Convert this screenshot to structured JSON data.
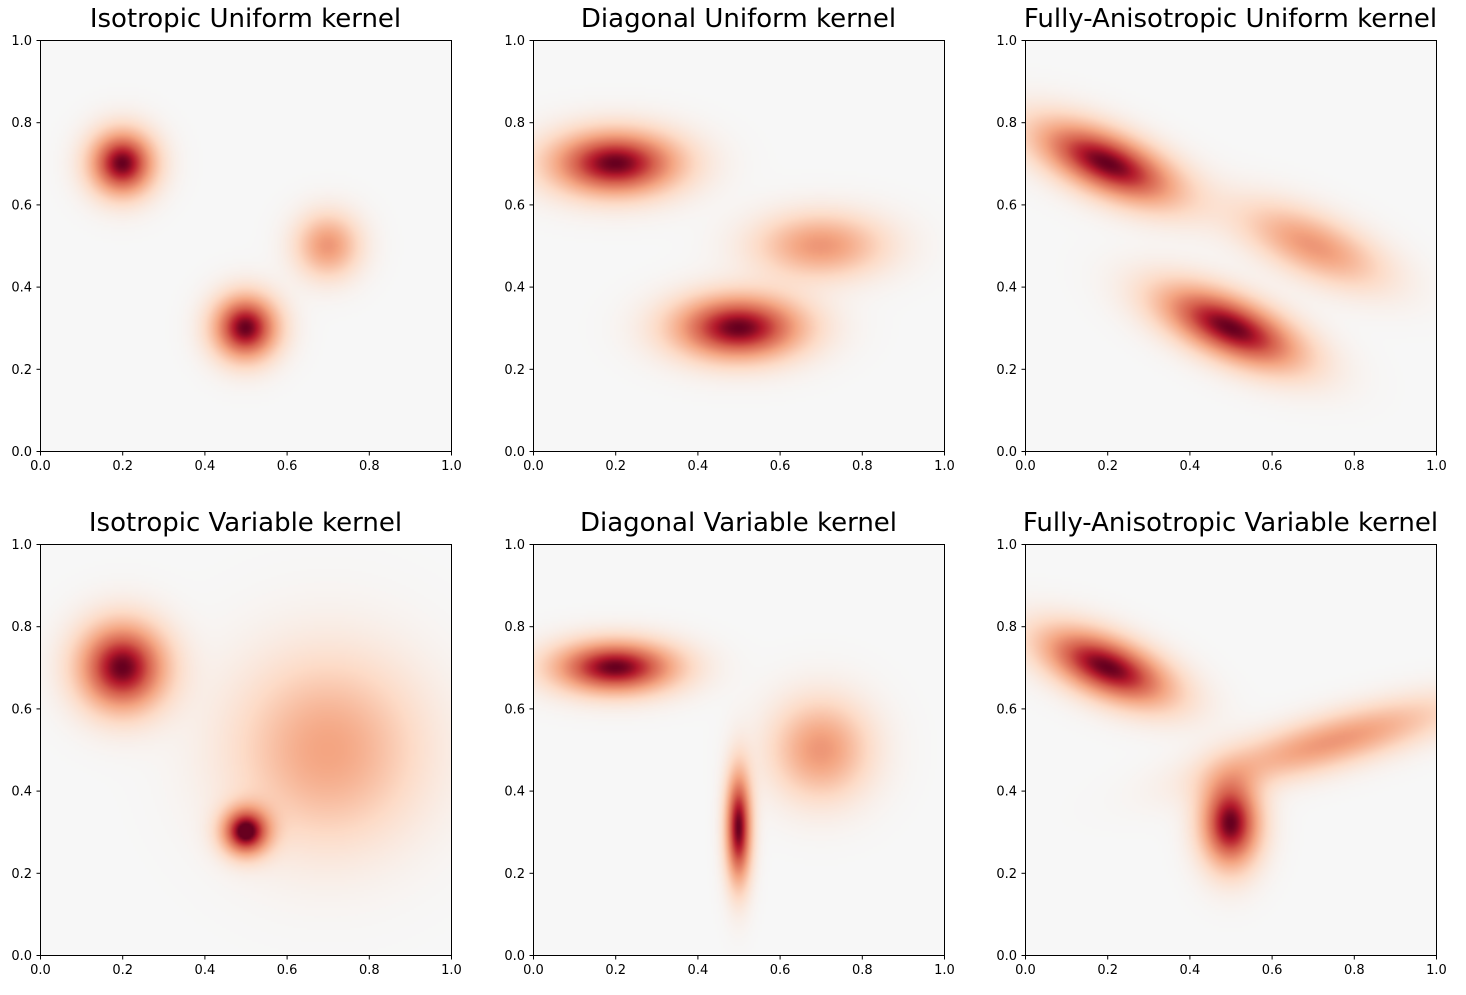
{
  "chart_data": [
    {
      "type": "heatmap",
      "title": "Isotropic Uniform kernel",
      "xlim": [
        0,
        1
      ],
      "ylim": [
        0,
        1
      ],
      "xticks": [
        "0.0",
        "0.2",
        "0.4",
        "0.6",
        "0.8",
        "1.0"
      ],
      "yticks": [
        "0.0",
        "0.2",
        "0.4",
        "0.6",
        "0.8",
        "1.0"
      ],
      "grid": false,
      "colormap": "RdBu_r",
      "components": [
        {
          "center": [
            0.2,
            0.7
          ],
          "sx": 0.055,
          "sy": 0.055,
          "rho": 0,
          "amp": 1.0
        },
        {
          "center": [
            0.5,
            0.3
          ],
          "sx": 0.055,
          "sy": 0.055,
          "rho": 0,
          "amp": 1.0
        },
        {
          "center": [
            0.7,
            0.5
          ],
          "sx": 0.055,
          "sy": 0.055,
          "rho": 0,
          "amp": 0.5
        }
      ]
    },
    {
      "type": "heatmap",
      "title": "Diagonal Uniform kernel",
      "xlim": [
        0,
        1
      ],
      "ylim": [
        0,
        1
      ],
      "xticks": [
        "0.0",
        "0.2",
        "0.4",
        "0.6",
        "0.8",
        "1.0"
      ],
      "yticks": [
        "0.0",
        "0.2",
        "0.4",
        "0.6",
        "0.8",
        "1.0"
      ],
      "grid": false,
      "colormap": "RdBu_r",
      "components": [
        {
          "center": [
            0.2,
            0.7
          ],
          "sx": 0.11,
          "sy": 0.055,
          "rho": 0,
          "amp": 1.0
        },
        {
          "center": [
            0.5,
            0.3
          ],
          "sx": 0.11,
          "sy": 0.055,
          "rho": 0,
          "amp": 1.0
        },
        {
          "center": [
            0.7,
            0.5
          ],
          "sx": 0.11,
          "sy": 0.055,
          "rho": 0,
          "amp": 0.5
        }
      ]
    },
    {
      "type": "heatmap",
      "title": "Fully-Anisotropic Uniform kernel",
      "xlim": [
        0,
        1
      ],
      "ylim": [
        0,
        1
      ],
      "xticks": [
        "0.0",
        "0.2",
        "0.4",
        "0.6",
        "0.8",
        "1.0"
      ],
      "yticks": [
        "0.0",
        "0.2",
        "0.4",
        "0.6",
        "0.8",
        "1.0"
      ],
      "grid": false,
      "colormap": "RdBu_r",
      "components": [
        {
          "center": [
            0.2,
            0.7
          ],
          "sx": 0.12,
          "sy": 0.07,
          "rho": -0.6,
          "amp": 1.0
        },
        {
          "center": [
            0.5,
            0.3
          ],
          "sx": 0.12,
          "sy": 0.07,
          "rho": -0.6,
          "amp": 1.0
        },
        {
          "center": [
            0.7,
            0.5
          ],
          "sx": 0.12,
          "sy": 0.07,
          "rho": -0.6,
          "amp": 0.5
        }
      ]
    },
    {
      "type": "heatmap",
      "title": "Isotropic Variable kernel",
      "xlim": [
        0,
        1
      ],
      "ylim": [
        0,
        1
      ],
      "xticks": [
        "0.0",
        "0.2",
        "0.4",
        "0.6",
        "0.8",
        "1.0"
      ],
      "yticks": [
        "0.0",
        "0.2",
        "0.4",
        "0.6",
        "0.8",
        "1.0"
      ],
      "grid": false,
      "colormap": "RdBu_r",
      "components": [
        {
          "center": [
            0.2,
            0.7
          ],
          "sx": 0.075,
          "sy": 0.075,
          "rho": 0,
          "amp": 1.0
        },
        {
          "center": [
            0.5,
            0.3
          ],
          "sx": 0.04,
          "sy": 0.04,
          "rho": 0,
          "amp": 1.0
        },
        {
          "center": [
            0.7,
            0.5
          ],
          "sx": 0.16,
          "sy": 0.16,
          "rho": 0,
          "amp": 0.45
        }
      ]
    },
    {
      "type": "heatmap",
      "title": "Diagonal Variable kernel",
      "xlim": [
        0,
        1
      ],
      "ylim": [
        0,
        1
      ],
      "xticks": [
        "0.0",
        "0.2",
        "0.4",
        "0.6",
        "0.8",
        "1.0"
      ],
      "yticks": [
        "0.0",
        "0.2",
        "0.4",
        "0.6",
        "0.8",
        "1.0"
      ],
      "grid": false,
      "colormap": "RdBu_r",
      "components": [
        {
          "center": [
            0.2,
            0.7
          ],
          "sx": 0.105,
          "sy": 0.045,
          "rho": 0,
          "amp": 1.0
        },
        {
          "center": [
            0.5,
            0.31
          ],
          "sx": 0.022,
          "sy": 0.095,
          "rho": 0,
          "amp": 1.0
        },
        {
          "center": [
            0.7,
            0.5
          ],
          "sx": 0.085,
          "sy": 0.085,
          "rho": 0,
          "amp": 0.5
        }
      ]
    },
    {
      "type": "heatmap",
      "title": "Fully-Anisotropic Variable kernel",
      "xlim": [
        0,
        1
      ],
      "ylim": [
        0,
        1
      ],
      "xticks": [
        "0.0",
        "0.2",
        "0.4",
        "0.6",
        "0.8",
        "1.0"
      ],
      "yticks": [
        "0.0",
        "0.2",
        "0.4",
        "0.6",
        "0.8",
        "1.0"
      ],
      "grid": false,
      "colormap": "RdBu_r",
      "components": [
        {
          "center": [
            0.2,
            0.7
          ],
          "sx": 0.11,
          "sy": 0.065,
          "rho": -0.55,
          "amp": 1.0
        },
        {
          "center": [
            0.5,
            0.32
          ],
          "sx": 0.05,
          "sy": 0.075,
          "rho": 0,
          "amp": 1.0
        },
        {
          "center": [
            0.75,
            0.52
          ],
          "sx": 0.2,
          "sy": 0.07,
          "rho": 0.75,
          "amp": 0.5
        }
      ]
    }
  ]
}
